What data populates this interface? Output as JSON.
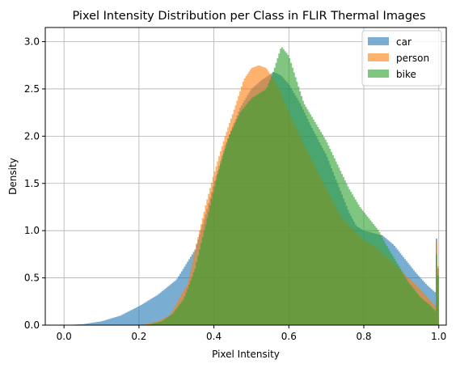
{
  "chart_data": {
    "type": "histogram",
    "title": "Pixel Intensity Distribution per Class in FLIR Thermal Images",
    "xlabel": "Pixel Intensity",
    "ylabel": "Density",
    "xlim": [
      -0.05,
      1.02
    ],
    "ylim": [
      0,
      3.15
    ],
    "xticks": [
      0.0,
      0.2,
      0.4,
      0.6,
      0.8,
      1.0
    ],
    "yticks": [
      0.0,
      0.5,
      1.0,
      1.5,
      2.0,
      2.5,
      3.0
    ],
    "grid": true,
    "legend_position": "top-right",
    "bin_width": 0.004,
    "series": [
      {
        "name": "car",
        "color": "#1f77b4",
        "alpha": 0.6,
        "points": [
          [
            0.0,
            0.0
          ],
          [
            0.05,
            0.01
          ],
          [
            0.1,
            0.04
          ],
          [
            0.15,
            0.1
          ],
          [
            0.2,
            0.2
          ],
          [
            0.25,
            0.32
          ],
          [
            0.3,
            0.48
          ],
          [
            0.35,
            0.8
          ],
          [
            0.38,
            1.2
          ],
          [
            0.4,
            1.5
          ],
          [
            0.43,
            1.9
          ],
          [
            0.47,
            2.3
          ],
          [
            0.5,
            2.5
          ],
          [
            0.53,
            2.6
          ],
          [
            0.56,
            2.68
          ],
          [
            0.58,
            2.64
          ],
          [
            0.6,
            2.55
          ],
          [
            0.63,
            2.35
          ],
          [
            0.66,
            2.1
          ],
          [
            0.7,
            1.8
          ],
          [
            0.73,
            1.5
          ],
          [
            0.76,
            1.2
          ],
          [
            0.78,
            1.05
          ],
          [
            0.8,
            1.0
          ],
          [
            0.82,
            0.98
          ],
          [
            0.85,
            0.95
          ],
          [
            0.88,
            0.85
          ],
          [
            0.91,
            0.7
          ],
          [
            0.94,
            0.55
          ],
          [
            0.97,
            0.42
          ],
          [
            0.99,
            0.35
          ],
          [
            0.996,
            1.2
          ],
          [
            1.0,
            0.0
          ]
        ]
      },
      {
        "name": "person",
        "color": "#ff7f0e",
        "alpha": 0.6,
        "points": [
          [
            0.2,
            0.0
          ],
          [
            0.25,
            0.04
          ],
          [
            0.28,
            0.1
          ],
          [
            0.3,
            0.22
          ],
          [
            0.33,
            0.45
          ],
          [
            0.35,
            0.8
          ],
          [
            0.38,
            1.3
          ],
          [
            0.4,
            1.6
          ],
          [
            0.43,
            2.0
          ],
          [
            0.46,
            2.35
          ],
          [
            0.48,
            2.6
          ],
          [
            0.5,
            2.72
          ],
          [
            0.52,
            2.75
          ],
          [
            0.54,
            2.72
          ],
          [
            0.56,
            2.6
          ],
          [
            0.58,
            2.45
          ],
          [
            0.6,
            2.25
          ],
          [
            0.63,
            2.0
          ],
          [
            0.66,
            1.75
          ],
          [
            0.7,
            1.45
          ],
          [
            0.73,
            1.2
          ],
          [
            0.76,
            1.05
          ],
          [
            0.8,
            0.9
          ],
          [
            0.84,
            0.8
          ],
          [
            0.88,
            0.65
          ],
          [
            0.92,
            0.5
          ],
          [
            0.95,
            0.38
          ],
          [
            0.98,
            0.25
          ],
          [
            0.99,
            0.2
          ],
          [
            0.996,
            1.25
          ],
          [
            1.0,
            0.0
          ]
        ]
      },
      {
        "name": "bike",
        "color": "#2ca02c",
        "alpha": 0.6,
        "points": [
          [
            0.22,
            0.0
          ],
          [
            0.26,
            0.04
          ],
          [
            0.29,
            0.12
          ],
          [
            0.32,
            0.28
          ],
          [
            0.35,
            0.6
          ],
          [
            0.38,
            1.1
          ],
          [
            0.41,
            1.6
          ],
          [
            0.44,
            2.0
          ],
          [
            0.47,
            2.25
          ],
          [
            0.5,
            2.4
          ],
          [
            0.52,
            2.45
          ],
          [
            0.54,
            2.5
          ],
          [
            0.56,
            2.7
          ],
          [
            0.58,
            2.95
          ],
          [
            0.6,
            2.85
          ],
          [
            0.62,
            2.6
          ],
          [
            0.64,
            2.35
          ],
          [
            0.67,
            2.15
          ],
          [
            0.7,
            1.95
          ],
          [
            0.73,
            1.7
          ],
          [
            0.76,
            1.45
          ],
          [
            0.79,
            1.25
          ],
          [
            0.82,
            1.1
          ],
          [
            0.84,
            1.0
          ],
          [
            0.86,
            0.85
          ],
          [
            0.89,
            0.65
          ],
          [
            0.92,
            0.45
          ],
          [
            0.95,
            0.3
          ],
          [
            0.98,
            0.2
          ],
          [
            0.99,
            0.15
          ],
          [
            0.996,
            1.05
          ],
          [
            1.0,
            0.0
          ]
        ]
      }
    ]
  }
}
